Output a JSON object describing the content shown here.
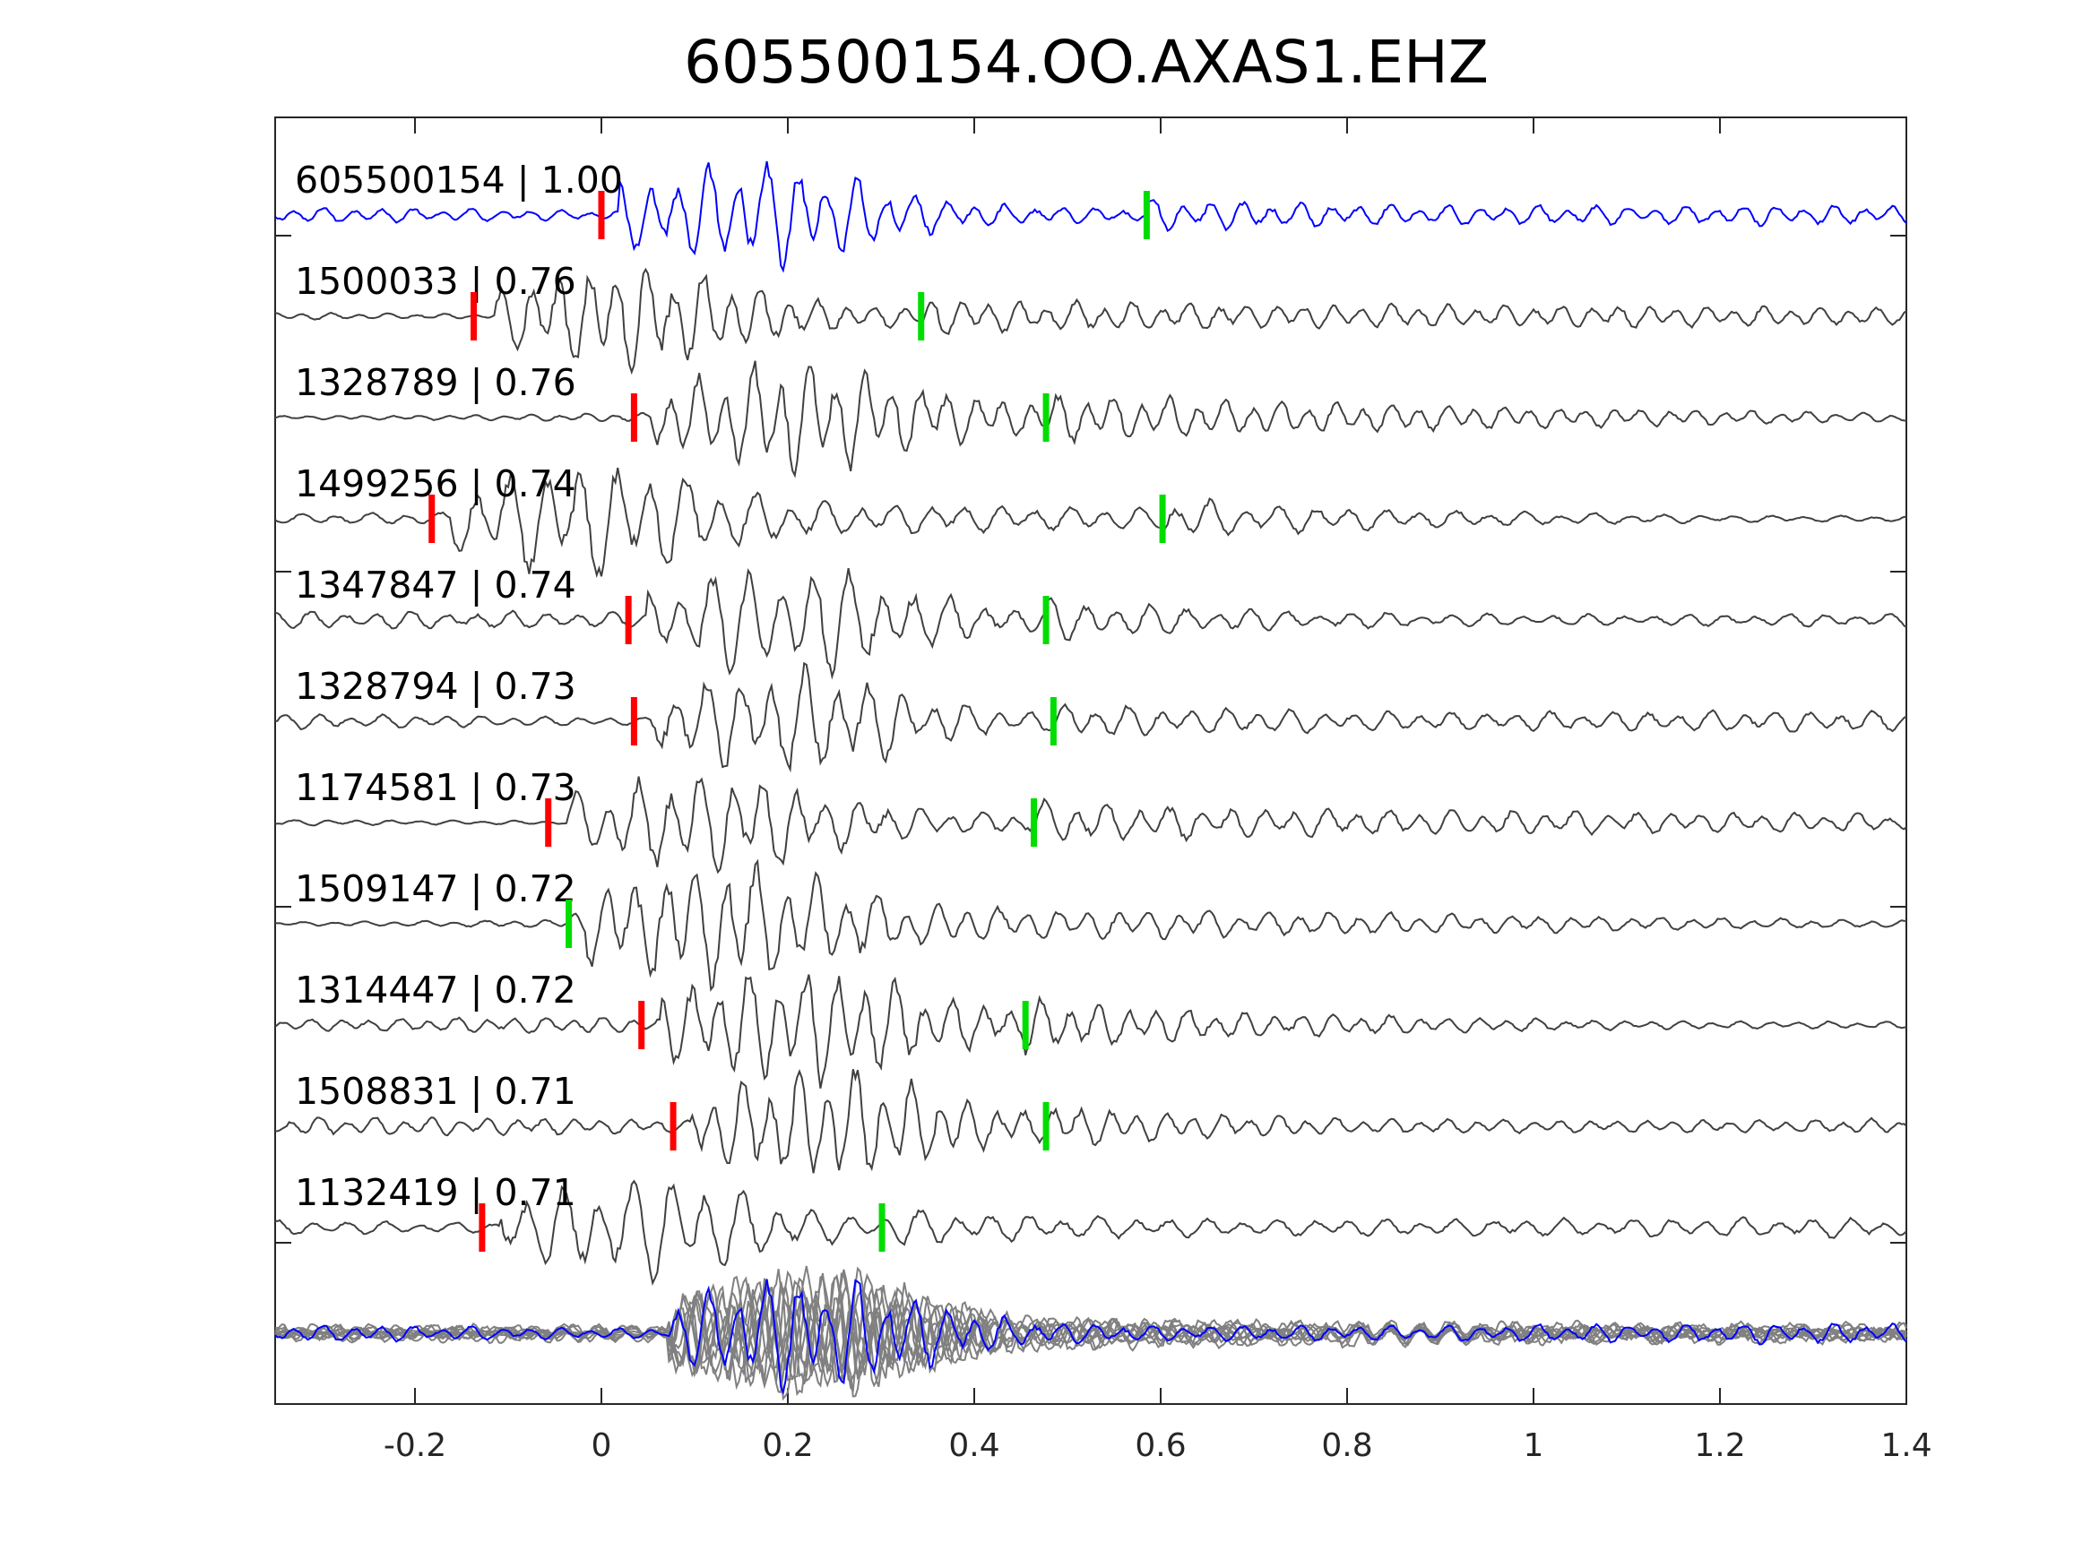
{
  "chart_data": {
    "type": "line",
    "title": "605500154.OO.AXAS1.EHZ",
    "xlabel": "",
    "ylabel": "",
    "xlim": [
      -0.35,
      1.4
    ],
    "xticks": [
      -0.2,
      0,
      0.2,
      0.4,
      0.6,
      0.8,
      1,
      1.2,
      1.4
    ],
    "xtick_labels": [
      "-0.2",
      "0",
      "0.2",
      "0.4",
      "0.6",
      "0.8",
      "1",
      "1.2",
      "1.4"
    ],
    "grid": false,
    "colors": {
      "reference": "#0000ff",
      "template": "#404040",
      "stack": "#808080",
      "p_pick": "#ff0000",
      "s_pick": "#00dd00"
    },
    "traces": [
      {
        "event_id": "605500154",
        "cc": "1.00",
        "label": "605500154 | 1.00",
        "p_pick": 0.0,
        "s_pick": 0.585,
        "color": "#0000ff"
      },
      {
        "event_id": "1500033",
        "cc": "0.76",
        "label": "1500033 | 0.76",
        "p_pick": -0.137,
        "s_pick": 0.343,
        "color": "#404040"
      },
      {
        "event_id": "1328789",
        "cc": "0.76",
        "label": "1328789 | 0.76",
        "p_pick": 0.035,
        "s_pick": 0.477,
        "color": "#404040"
      },
      {
        "event_id": "1499256",
        "cc": "0.74",
        "label": "1499256 | 0.74",
        "p_pick": -0.182,
        "s_pick": 0.602,
        "color": "#404040"
      },
      {
        "event_id": "1347847",
        "cc": "0.74",
        "label": "1347847 | 0.74",
        "p_pick": 0.029,
        "s_pick": 0.477,
        "color": "#404040"
      },
      {
        "event_id": "1328794",
        "cc": "0.73",
        "label": "1328794 | 0.73",
        "p_pick": 0.035,
        "s_pick": 0.485,
        "color": "#404040"
      },
      {
        "event_id": "1174581",
        "cc": "0.73",
        "label": "1174581 | 0.73",
        "p_pick": -0.057,
        "s_pick": 0.464,
        "color": "#404040"
      },
      {
        "event_id": "1509147",
        "cc": "0.72",
        "label": "1509147 | 0.72",
        "p_pick": null,
        "s_pick": -0.035,
        "color": "#404040"
      },
      {
        "event_id": "1314447",
        "cc": "0.72",
        "label": "1314447 | 0.72",
        "p_pick": 0.043,
        "s_pick": 0.455,
        "color": "#404040"
      },
      {
        "event_id": "1508831",
        "cc": "0.71",
        "label": "1508831 | 0.71",
        "p_pick": 0.077,
        "s_pick": 0.477,
        "color": "#404040"
      },
      {
        "event_id": "1132419",
        "cc": "0.71",
        "label": "1132419 | 0.71",
        "p_pick": -0.128,
        "s_pick": 0.301,
        "color": "#404040"
      }
    ],
    "stack": {
      "description_visible": false,
      "color_reference": "#0000ff",
      "color_others": "#808080"
    }
  }
}
